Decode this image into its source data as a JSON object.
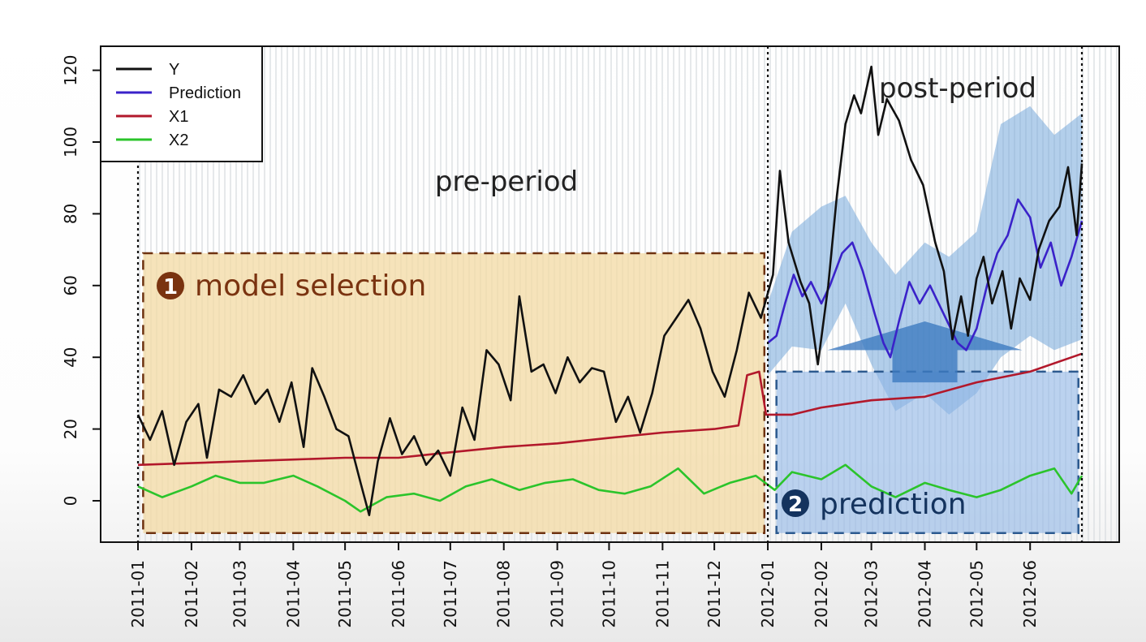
{
  "chart_data": {
    "type": "line",
    "title": "",
    "xlabel": "",
    "ylabel": "",
    "ylim": [
      -12,
      127
    ],
    "xlim": [
      "2011-01-01",
      "2012-07-01"
    ],
    "grid": false,
    "legend_position": "top-left",
    "x_tick_labels": [
      "2011-01",
      "2011-02",
      "2011-03",
      "2011-04",
      "2011-05",
      "2011-06",
      "2011-07",
      "2011-08",
      "2011-09",
      "2011-10",
      "2011-11",
      "2011-12",
      "2012-01",
      "2012-02",
      "2012-03",
      "2012-04",
      "2012-05",
      "2012-06"
    ],
    "y_ticks": [
      0,
      20,
      40,
      60,
      80,
      100,
      120
    ],
    "intervention_date": "2012-01-01",
    "legend": [
      {
        "name": "Y",
        "color": "#111111"
      },
      {
        "name": "Prediction",
        "color": "#3a22c9"
      },
      {
        "name": "X1",
        "color": "#b2182b"
      },
      {
        "name": "X2",
        "color": "#2bc42b"
      }
    ],
    "series": [
      {
        "name": "Y",
        "color": "#111111",
        "points": [
          [
            "2011-01-01",
            24
          ],
          [
            "2011-01-08",
            17
          ],
          [
            "2011-01-15",
            25
          ],
          [
            "2011-01-22",
            10
          ],
          [
            "2011-01-29",
            22
          ],
          [
            "2011-02-05",
            27
          ],
          [
            "2011-02-10",
            12
          ],
          [
            "2011-02-17",
            31
          ],
          [
            "2011-02-24",
            29
          ],
          [
            "2011-03-03",
            35
          ],
          [
            "2011-03-10",
            27
          ],
          [
            "2011-03-17",
            31
          ],
          [
            "2011-03-24",
            22
          ],
          [
            "2011-03-31",
            33
          ],
          [
            "2011-04-07",
            15
          ],
          [
            "2011-04-12",
            37
          ],
          [
            "2011-04-19",
            29
          ],
          [
            "2011-04-26",
            20
          ],
          [
            "2011-05-03",
            18
          ],
          [
            "2011-05-10",
            5
          ],
          [
            "2011-05-15",
            -4
          ],
          [
            "2011-05-20",
            11
          ],
          [
            "2011-05-27",
            23
          ],
          [
            "2011-06-03",
            13
          ],
          [
            "2011-06-10",
            18
          ],
          [
            "2011-06-17",
            10
          ],
          [
            "2011-06-24",
            14
          ],
          [
            "2011-07-01",
            7
          ],
          [
            "2011-07-08",
            26
          ],
          [
            "2011-07-15",
            17
          ],
          [
            "2011-07-22",
            42
          ],
          [
            "2011-07-29",
            38
          ],
          [
            "2011-08-05",
            28
          ],
          [
            "2011-08-10",
            57
          ],
          [
            "2011-08-17",
            36
          ],
          [
            "2011-08-24",
            38
          ],
          [
            "2011-08-31",
            30
          ],
          [
            "2011-09-07",
            40
          ],
          [
            "2011-09-14",
            33
          ],
          [
            "2011-09-21",
            37
          ],
          [
            "2011-09-28",
            36
          ],
          [
            "2011-10-05",
            22
          ],
          [
            "2011-10-12",
            29
          ],
          [
            "2011-10-19",
            19
          ],
          [
            "2011-10-26",
            30
          ],
          [
            "2011-11-02",
            46
          ],
          [
            "2011-11-09",
            51
          ],
          [
            "2011-11-16",
            56
          ],
          [
            "2011-11-23",
            48
          ],
          [
            "2011-11-30",
            36
          ],
          [
            "2011-12-07",
            29
          ],
          [
            "2011-12-14",
            42
          ],
          [
            "2011-12-21",
            58
          ],
          [
            "2011-12-28",
            51
          ],
          [
            "2012-01-04",
            63
          ],
          [
            "2012-01-08",
            92
          ],
          [
            "2012-01-13",
            72
          ],
          [
            "2012-01-20",
            61
          ],
          [
            "2012-01-25",
            55
          ],
          [
            "2012-01-30",
            38
          ],
          [
            "2012-02-05",
            60
          ],
          [
            "2012-02-10",
            85
          ],
          [
            "2012-02-15",
            105
          ],
          [
            "2012-02-20",
            113
          ],
          [
            "2012-02-24",
            108
          ],
          [
            "2012-03-01",
            121
          ],
          [
            "2012-03-05",
            102
          ],
          [
            "2012-03-10",
            112
          ],
          [
            "2012-03-17",
            106
          ],
          [
            "2012-03-24",
            95
          ],
          [
            "2012-03-31",
            88
          ],
          [
            "2012-04-07",
            72
          ],
          [
            "2012-04-12",
            64
          ],
          [
            "2012-04-17",
            45
          ],
          [
            "2012-04-22",
            57
          ],
          [
            "2012-04-26",
            46
          ],
          [
            "2012-05-01",
            62
          ],
          [
            "2012-05-05",
            68
          ],
          [
            "2012-05-10",
            55
          ],
          [
            "2012-05-16",
            64
          ],
          [
            "2012-05-21",
            48
          ],
          [
            "2012-05-26",
            62
          ],
          [
            "2012-06-01",
            56
          ],
          [
            "2012-06-06",
            70
          ],
          [
            "2012-06-12",
            78
          ],
          [
            "2012-06-18",
            82
          ],
          [
            "2012-06-23",
            93
          ],
          [
            "2012-06-28",
            74
          ],
          [
            "2012-07-01",
            94
          ]
        ]
      },
      {
        "name": "Prediction",
        "color": "#3a22c9",
        "points": [
          [
            "2012-01-01",
            44
          ],
          [
            "2012-01-06",
            46
          ],
          [
            "2012-01-11",
            55
          ],
          [
            "2012-01-16",
            63
          ],
          [
            "2012-01-21",
            57
          ],
          [
            "2012-01-26",
            61
          ],
          [
            "2012-02-01",
            55
          ],
          [
            "2012-02-06",
            60
          ],
          [
            "2012-02-13",
            69
          ],
          [
            "2012-02-19",
            72
          ],
          [
            "2012-02-25",
            64
          ],
          [
            "2012-03-03",
            52
          ],
          [
            "2012-03-08",
            44
          ],
          [
            "2012-03-12",
            40
          ],
          [
            "2012-03-17",
            50
          ],
          [
            "2012-03-23",
            61
          ],
          [
            "2012-03-29",
            55
          ],
          [
            "2012-04-04",
            60
          ],
          [
            "2012-04-09",
            55
          ],
          [
            "2012-04-15",
            49
          ],
          [
            "2012-04-20",
            44
          ],
          [
            "2012-04-25",
            42
          ],
          [
            "2012-05-01",
            48
          ],
          [
            "2012-05-07",
            60
          ],
          [
            "2012-05-13",
            69
          ],
          [
            "2012-05-19",
            74
          ],
          [
            "2012-05-25",
            84
          ],
          [
            "2012-06-01",
            79
          ],
          [
            "2012-06-07",
            65
          ],
          [
            "2012-06-13",
            72
          ],
          [
            "2012-06-19",
            60
          ],
          [
            "2012-06-25",
            68
          ],
          [
            "2012-07-01",
            78
          ]
        ]
      },
      {
        "name": "X1",
        "color": "#b2182b",
        "points": [
          [
            "2011-01-01",
            10
          ],
          [
            "2011-02-01",
            10.5
          ],
          [
            "2011-03-01",
            11
          ],
          [
            "2011-04-01",
            11.5
          ],
          [
            "2011-05-01",
            12
          ],
          [
            "2011-06-01",
            12
          ],
          [
            "2011-07-01",
            13.5
          ],
          [
            "2011-08-01",
            15
          ],
          [
            "2011-09-01",
            16
          ],
          [
            "2011-10-01",
            17.5
          ],
          [
            "2011-11-01",
            19
          ],
          [
            "2011-12-01",
            20
          ],
          [
            "2011-12-15",
            21
          ],
          [
            "2011-12-20",
            35
          ],
          [
            "2011-12-27",
            36
          ],
          [
            "2011-12-31",
            24
          ],
          [
            "2012-01-15",
            24
          ],
          [
            "2012-02-01",
            26
          ],
          [
            "2012-03-01",
            28
          ],
          [
            "2012-04-01",
            29
          ],
          [
            "2012-05-01",
            33
          ],
          [
            "2012-06-01",
            36
          ],
          [
            "2012-07-01",
            41
          ]
        ]
      },
      {
        "name": "X2",
        "color": "#2bc42b",
        "points": [
          [
            "2011-01-01",
            4
          ],
          [
            "2011-01-15",
            1
          ],
          [
            "2011-02-01",
            4
          ],
          [
            "2011-02-15",
            7
          ],
          [
            "2011-03-01",
            5
          ],
          [
            "2011-03-15",
            5
          ],
          [
            "2011-04-01",
            7
          ],
          [
            "2011-04-15",
            4
          ],
          [
            "2011-05-01",
            0
          ],
          [
            "2011-05-10",
            -3
          ],
          [
            "2011-05-25",
            1
          ],
          [
            "2011-06-10",
            2
          ],
          [
            "2011-06-25",
            0
          ],
          [
            "2011-07-10",
            4
          ],
          [
            "2011-07-25",
            6
          ],
          [
            "2011-08-10",
            3
          ],
          [
            "2011-08-25",
            5
          ],
          [
            "2011-09-10",
            6
          ],
          [
            "2011-09-25",
            3
          ],
          [
            "2011-10-10",
            2
          ],
          [
            "2011-10-25",
            4
          ],
          [
            "2011-11-10",
            9
          ],
          [
            "2011-11-25",
            2
          ],
          [
            "2011-12-10",
            5
          ],
          [
            "2011-12-25",
            7
          ],
          [
            "2012-01-05",
            3
          ],
          [
            "2012-01-15",
            8
          ],
          [
            "2012-02-01",
            6
          ],
          [
            "2012-02-15",
            10
          ],
          [
            "2012-03-01",
            4
          ],
          [
            "2012-03-15",
            1
          ],
          [
            "2012-04-01",
            5
          ],
          [
            "2012-04-15",
            3
          ],
          [
            "2012-05-01",
            1
          ],
          [
            "2012-05-15",
            3
          ],
          [
            "2012-06-01",
            7
          ],
          [
            "2012-06-15",
            9
          ],
          [
            "2012-06-25",
            2
          ],
          [
            "2012-07-01",
            7
          ]
        ]
      }
    ],
    "prediction_band": [
      [
        "2012-01-01",
        35,
        55
      ],
      [
        "2012-01-15",
        43,
        75
      ],
      [
        "2012-02-01",
        42,
        82
      ],
      [
        "2012-02-15",
        55,
        85
      ],
      [
        "2012-03-01",
        38,
        72
      ],
      [
        "2012-03-15",
        25,
        63
      ],
      [
        "2012-04-01",
        30,
        72
      ],
      [
        "2012-04-15",
        24,
        68
      ],
      [
        "2012-05-01",
        30,
        75
      ],
      [
        "2012-05-15",
        40,
        105
      ],
      [
        "2012-06-01",
        46,
        110
      ],
      [
        "2012-06-15",
        42,
        102
      ],
      [
        "2012-07-01",
        45,
        108
      ]
    ],
    "annotations": {
      "pre_period_label": "pre-period",
      "post_period_label": "post-period",
      "model_selection": {
        "number": "1",
        "label": "model selection"
      },
      "prediction": {
        "number": "2",
        "label": "prediction"
      }
    }
  }
}
